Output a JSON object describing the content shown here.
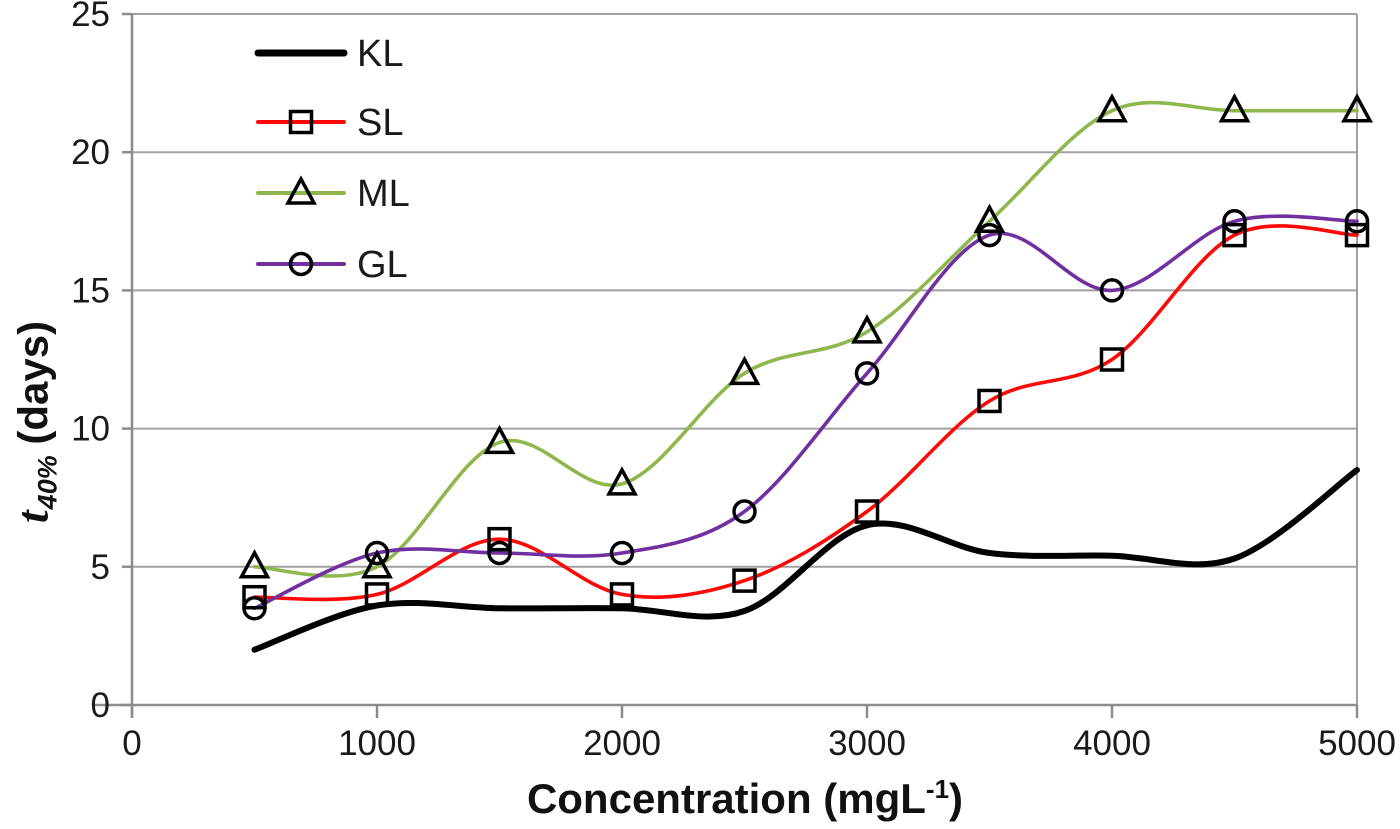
{
  "chart_data": {
    "type": "line",
    "title": "",
    "xlabel": "Concentration (mgL⁻¹)",
    "ylabel": "t40% (days)",
    "xlim": [
      0,
      5000
    ],
    "ylim": [
      0,
      25
    ],
    "x_ticks": [
      0,
      1000,
      2000,
      3000,
      4000,
      5000
    ],
    "y_ticks": [
      0,
      5,
      10,
      15,
      20,
      25
    ],
    "grid": "horizontal-only",
    "smoothed_lines": true,
    "legend_position": "inside-top-left",
    "x": [
      500,
      1000,
      1500,
      2000,
      2500,
      3000,
      3500,
      4000,
      4500,
      5000
    ],
    "series": [
      {
        "name": "KL",
        "color": "#000000",
        "marker": "none",
        "line_width": 6,
        "values": [
          2.0,
          3.6,
          3.5,
          3.5,
          3.4,
          6.5,
          5.5,
          5.4,
          5.3,
          8.5
        ]
      },
      {
        "name": "SL",
        "color": "#FE0808",
        "marker": "square",
        "line_width": 3.6,
        "values": [
          3.9,
          4.0,
          6.0,
          4.0,
          4.5,
          7.0,
          11.0,
          12.5,
          17.0,
          17.0
        ]
      },
      {
        "name": "ML",
        "color": "#8FB74E",
        "marker": "triangle",
        "line_width": 3.6,
        "values": [
          5.0,
          5.0,
          9.5,
          8.0,
          12.0,
          13.5,
          17.5,
          21.5,
          21.5,
          21.5
        ]
      },
      {
        "name": "GL",
        "color": "#7030A0",
        "marker": "circle",
        "line_width": 3.6,
        "values": [
          3.5,
          5.5,
          5.5,
          5.5,
          7.0,
          12.0,
          17.0,
          15.0,
          17.5,
          17.5
        ]
      }
    ],
    "marker_stroke_color": "#000000",
    "gridline_color": "#A0A0A0",
    "axis_color": "#8C8C8C",
    "tick_label_color": "#1a1a1a"
  },
  "labels": {
    "y_var": "t",
    "y_sub": "40%",
    "y_rest": " (days)",
    "x_main": "Concentration (mgL",
    "x_sup": "-1",
    "x_close": ")"
  }
}
